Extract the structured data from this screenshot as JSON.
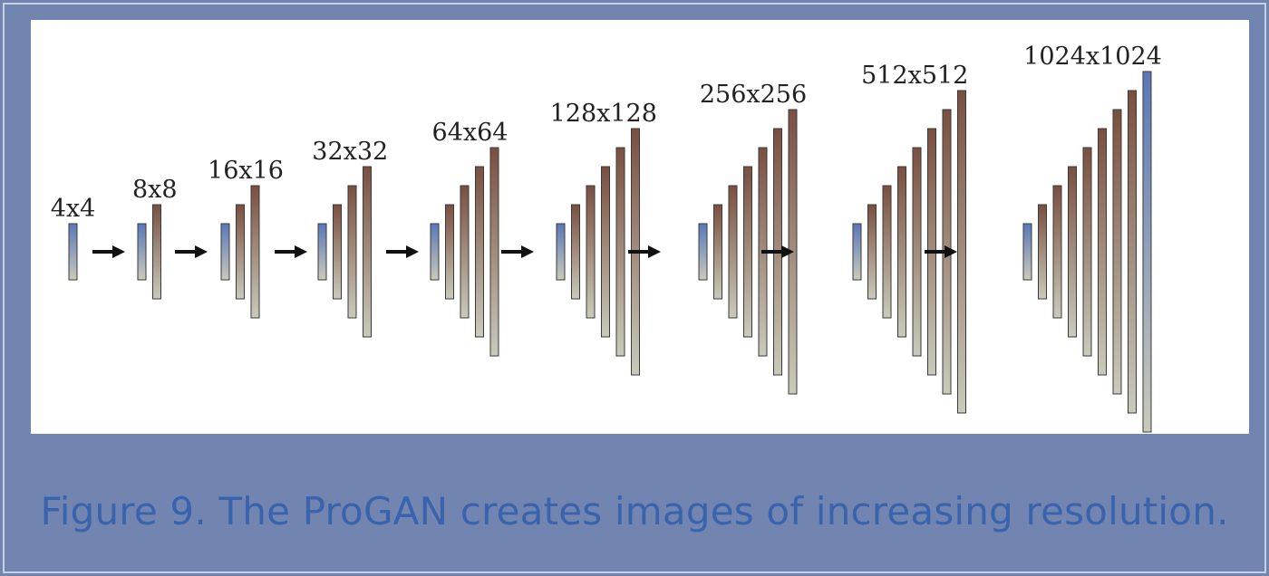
{
  "colors": {
    "frame_background": "#7185b0",
    "panel_background": "#ffffff",
    "caption_color": "#3a63ad",
    "input_bar_top": "#5a78b8",
    "feature_bar_top": "#7a4f40",
    "bar_bottom": "#c9cabb",
    "arrow": "#111111"
  },
  "stages": [
    {
      "label": "4x4",
      "layers": 1
    },
    {
      "label": "8x8",
      "layers": 2
    },
    {
      "label": "16x16",
      "layers": 3
    },
    {
      "label": "32x32",
      "layers": 4
    },
    {
      "label": "64x64",
      "layers": 5
    },
    {
      "label": "128x128",
      "layers": 6
    },
    {
      "label": "256x256",
      "layers": 7
    },
    {
      "label": "512x512",
      "layers": 8
    },
    {
      "label": "1024x1024",
      "layers": 9
    }
  ],
  "caption": "Figure 9. The ProGAN creates images of increasing resolution."
}
